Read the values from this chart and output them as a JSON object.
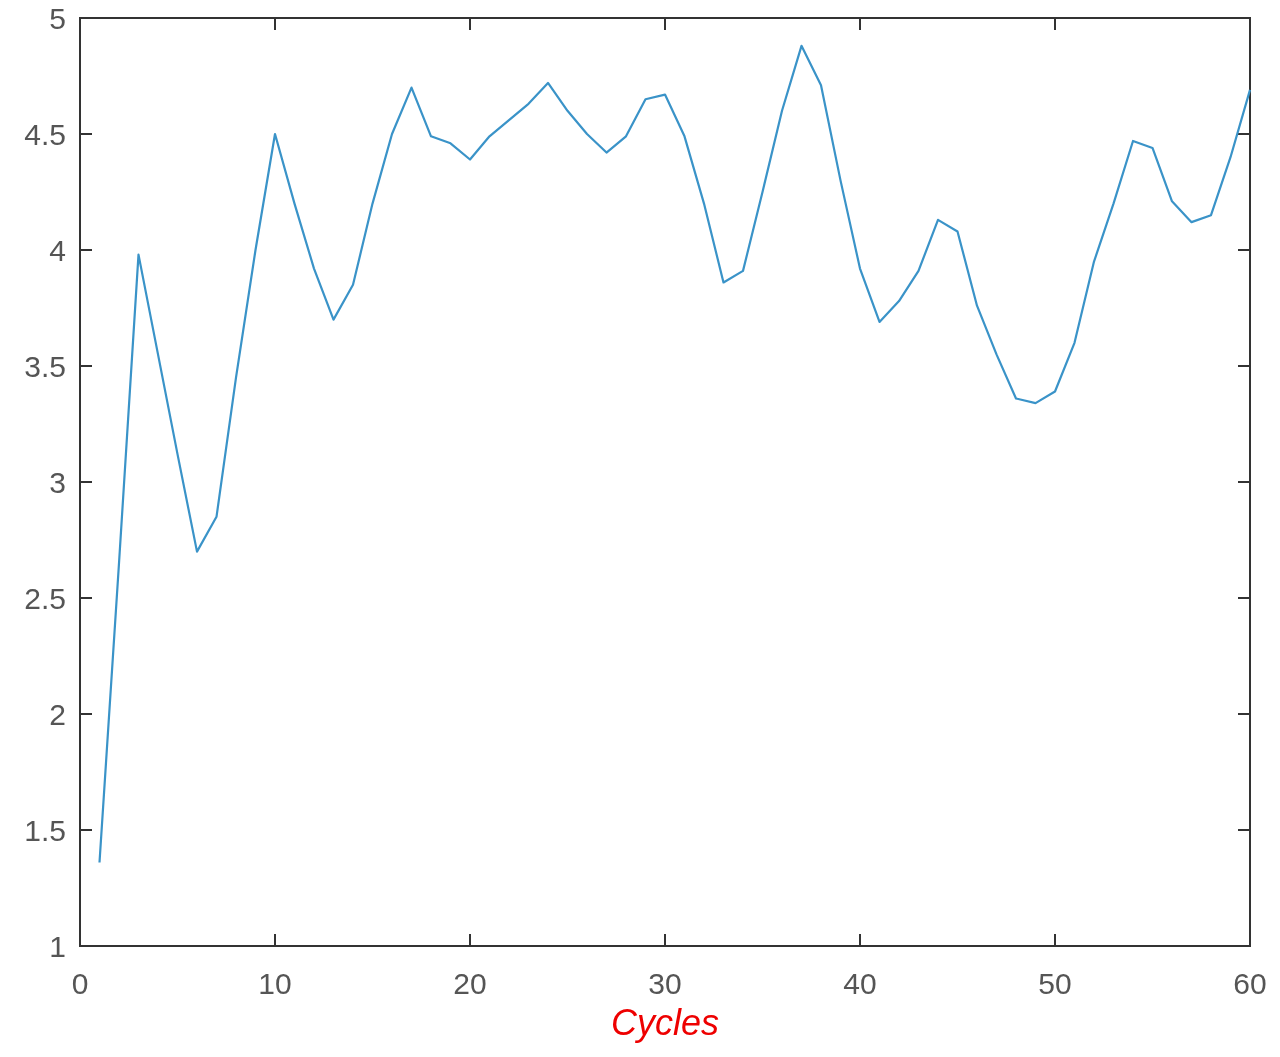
{
  "chart_data": {
    "type": "line",
    "xlabel": "Cycles",
    "x": [
      1,
      2,
      3,
      4,
      5,
      6,
      7,
      8,
      9,
      10,
      11,
      12,
      13,
      14,
      15,
      16,
      17,
      18,
      19,
      20,
      21,
      22,
      23,
      24,
      25,
      26,
      27,
      28,
      29,
      30,
      31,
      32,
      33,
      34,
      35,
      36,
      37,
      38,
      39,
      40,
      41,
      42,
      43,
      44,
      45,
      46,
      47,
      48,
      49,
      50,
      51,
      52,
      53,
      54,
      55,
      56,
      57,
      58,
      59,
      60
    ],
    "series": [
      {
        "color": "#3a93c8",
        "values": [
          1.36,
          2.65,
          3.98,
          3.55,
          3.12,
          2.7,
          2.85,
          3.45,
          4.0,
          4.5,
          4.2,
          3.92,
          3.7,
          3.85,
          4.2,
          4.5,
          4.7,
          4.49,
          4.46,
          4.39,
          4.49,
          4.56,
          4.63,
          4.72,
          4.6,
          4.5,
          4.42,
          4.49,
          4.65,
          4.67,
          4.49,
          4.2,
          3.86,
          3.91,
          4.25,
          4.6,
          4.88,
          4.71,
          4.3,
          3.92,
          3.69,
          3.78,
          3.91,
          4.13,
          4.08,
          3.76,
          3.55,
          3.36,
          3.34,
          3.39,
          3.6,
          3.95,
          4.2,
          4.47,
          4.44,
          4.21,
          4.12,
          4.15,
          4.4,
          4.69
        ]
      }
    ],
    "xlim": [
      0,
      60
    ],
    "xticks": [
      0,
      10,
      20,
      30,
      40,
      50,
      60
    ],
    "ylim": [
      1,
      5
    ],
    "yticks": [
      1,
      1.5,
      2,
      2.5,
      3,
      3.5,
      4,
      4.5,
      5
    ],
    "grid": false,
    "marker": "none",
    "line_style": "solid"
  }
}
